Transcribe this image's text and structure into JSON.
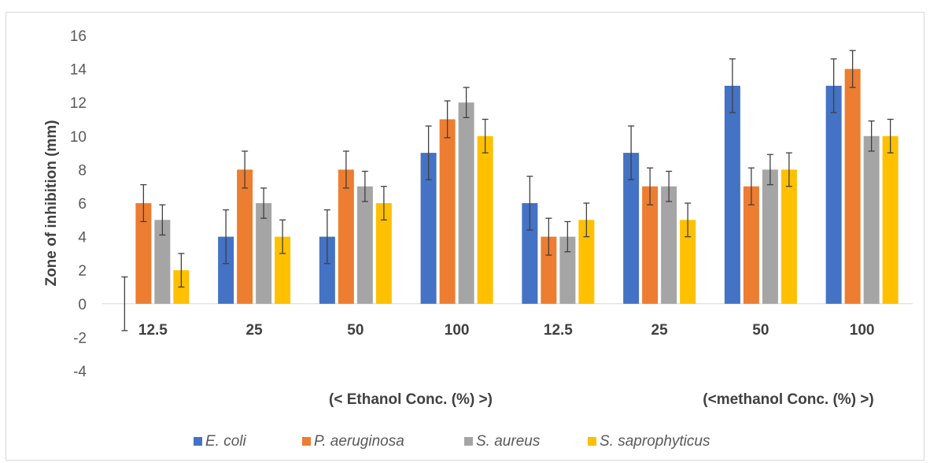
{
  "chart_data": {
    "type": "bar",
    "title": "",
    "ylabel": "Zone of inhibition (mm)",
    "xlabel": "",
    "ylim": [
      -4,
      16
    ],
    "yticks": [
      -4,
      -2,
      0,
      2,
      4,
      6,
      8,
      10,
      12,
      14,
      16
    ],
    "grid": false,
    "legend_position": "bottom",
    "categories": [
      "12.5",
      "25",
      "50",
      "100",
      "12.5",
      "25",
      "50",
      "100"
    ],
    "group_labels": [
      "(< Ethanol Conc. (%) >)",
      "(<methanol Conc. (%) >)"
    ],
    "series": [
      {
        "name": "E. coli",
        "color": "#4472c4",
        "values": [
          0,
          4,
          4,
          9,
          6,
          9,
          13,
          13
        ],
        "errors": [
          1.6,
          1.6,
          1.6,
          1.6,
          1.6,
          1.6,
          1.6,
          1.6
        ]
      },
      {
        "name": "P. aeruginosa",
        "color": "#ed7d31",
        "values": [
          6,
          8,
          8,
          11,
          4,
          7,
          7,
          14
        ],
        "errors": [
          1.1,
          1.1,
          1.1,
          1.1,
          1.1,
          1.1,
          1.1,
          1.1
        ]
      },
      {
        "name": "S. aureus",
        "color": "#a5a5a5",
        "values": [
          5,
          6,
          7,
          12,
          4,
          7,
          8,
          10
        ],
        "errors": [
          0.9,
          0.9,
          0.9,
          0.9,
          0.9,
          0.9,
          0.9,
          0.9
        ]
      },
      {
        "name": "S. saprophyticus",
        "color": "#ffc000",
        "values": [
          2,
          4,
          6,
          10,
          5,
          5,
          8,
          10
        ],
        "errors": [
          1.0,
          1.0,
          1.0,
          1.0,
          1.0,
          1.0,
          1.0,
          1.0
        ]
      }
    ]
  }
}
